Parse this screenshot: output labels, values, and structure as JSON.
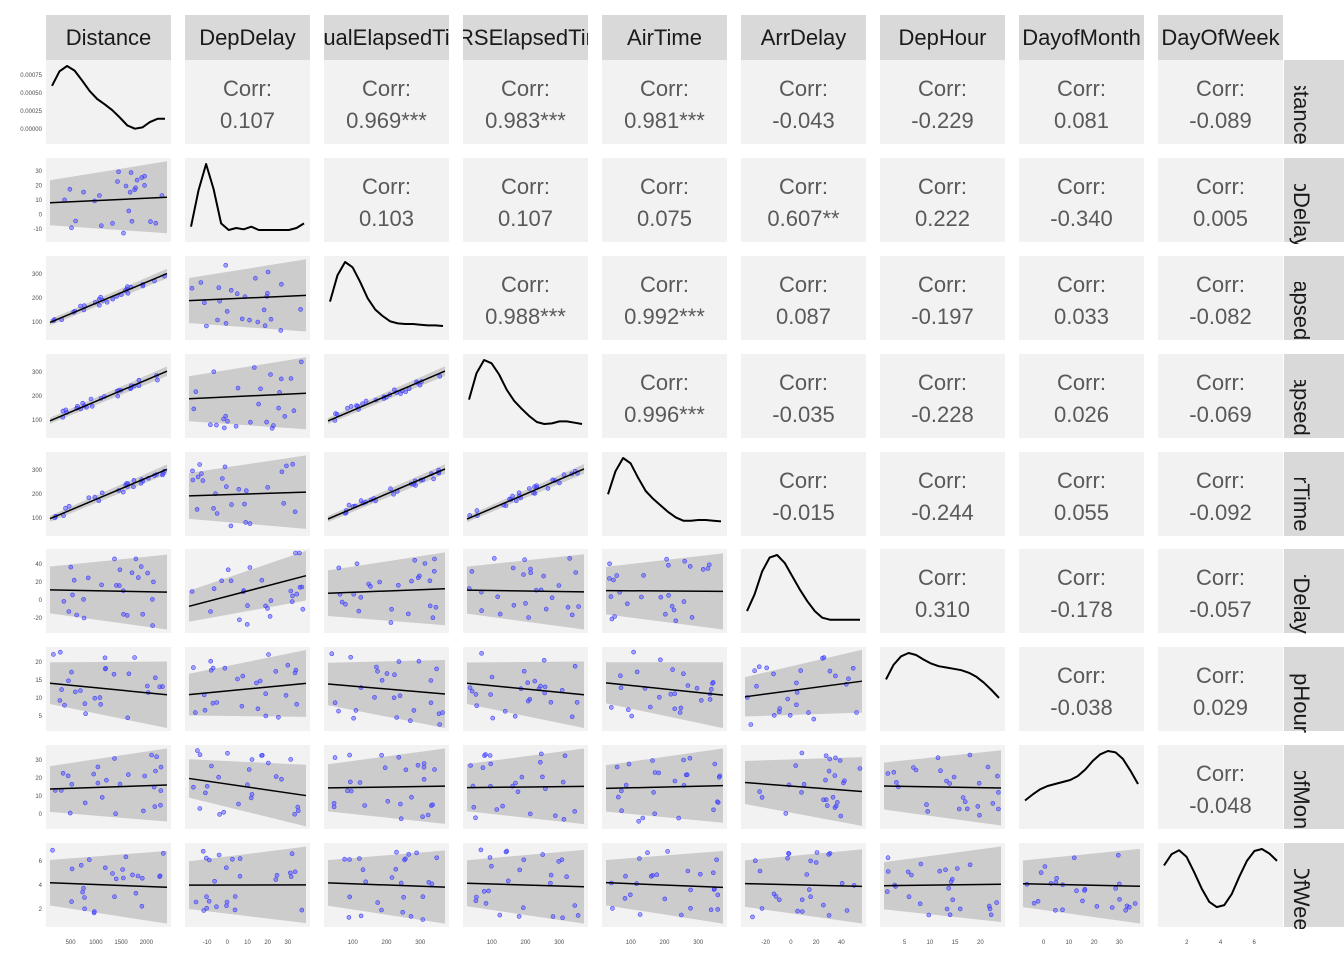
{
  "chart_data": {
    "type": "scatter",
    "variables": [
      "Distance",
      "DepDelay",
      "ActualElapsedTime",
      "CRSElapsedTime",
      "AirTime",
      "ArrDelay",
      "DepHour",
      "DayofMonth",
      "DayOfWeek"
    ],
    "column_labels": [
      "Distance",
      "DepDelay",
      "ualElapsedTi",
      "RSElapsedTir",
      "AirTime",
      "ArrDelay",
      "DepHour",
      "DayofMonth",
      "DayOfWeek"
    ],
    "row_labels": [
      "Distance",
      "DepDelay",
      "lElapsed",
      "Elapsed",
      "AirTime",
      "ArrDelay",
      "DepHour",
      "ayofMon",
      "ayOfWee"
    ],
    "correlations": [
      {
        "row": 0,
        "col": 1,
        "label": "Corr:",
        "value": "0.107"
      },
      {
        "row": 0,
        "col": 2,
        "label": "Corr:",
        "value": "0.969***"
      },
      {
        "row": 0,
        "col": 3,
        "label": "Corr:",
        "value": "0.983***"
      },
      {
        "row": 0,
        "col": 4,
        "label": "Corr:",
        "value": "0.981***"
      },
      {
        "row": 0,
        "col": 5,
        "label": "Corr:",
        "value": "-0.043"
      },
      {
        "row": 0,
        "col": 6,
        "label": "Corr:",
        "value": "-0.229"
      },
      {
        "row": 0,
        "col": 7,
        "label": "Corr:",
        "value": "0.081"
      },
      {
        "row": 0,
        "col": 8,
        "label": "Corr:",
        "value": "-0.089"
      },
      {
        "row": 1,
        "col": 2,
        "label": "Corr:",
        "value": "0.103"
      },
      {
        "row": 1,
        "col": 3,
        "label": "Corr:",
        "value": "0.107"
      },
      {
        "row": 1,
        "col": 4,
        "label": "Corr:",
        "value": "0.075"
      },
      {
        "row": 1,
        "col": 5,
        "label": "Corr:",
        "value": "0.607**"
      },
      {
        "row": 1,
        "col": 6,
        "label": "Corr:",
        "value": "0.222"
      },
      {
        "row": 1,
        "col": 7,
        "label": "Corr:",
        "value": "-0.340"
      },
      {
        "row": 1,
        "col": 8,
        "label": "Corr:",
        "value": "0.005"
      },
      {
        "row": 2,
        "col": 3,
        "label": "Corr:",
        "value": "0.988***"
      },
      {
        "row": 2,
        "col": 4,
        "label": "Corr:",
        "value": "0.992***"
      },
      {
        "row": 2,
        "col": 5,
        "label": "Corr:",
        "value": "0.087"
      },
      {
        "row": 2,
        "col": 6,
        "label": "Corr:",
        "value": "-0.197"
      },
      {
        "row": 2,
        "col": 7,
        "label": "Corr:",
        "value": "0.033"
      },
      {
        "row": 2,
        "col": 8,
        "label": "Corr:",
        "value": "-0.082"
      },
      {
        "row": 3,
        "col": 4,
        "label": "Corr:",
        "value": "0.996***"
      },
      {
        "row": 3,
        "col": 5,
        "label": "Corr:",
        "value": "-0.035"
      },
      {
        "row": 3,
        "col": 6,
        "label": "Corr:",
        "value": "-0.228"
      },
      {
        "row": 3,
        "col": 7,
        "label": "Corr:",
        "value": "0.026"
      },
      {
        "row": 3,
        "col": 8,
        "label": "Corr:",
        "value": "-0.069"
      },
      {
        "row": 4,
        "col": 5,
        "label": "Corr:",
        "value": "-0.015"
      },
      {
        "row": 4,
        "col": 6,
        "label": "Corr:",
        "value": "-0.244"
      },
      {
        "row": 4,
        "col": 7,
        "label": "Corr:",
        "value": "0.055"
      },
      {
        "row": 4,
        "col": 8,
        "label": "Corr:",
        "value": "-0.092"
      },
      {
        "row": 5,
        "col": 6,
        "label": "Corr:",
        "value": "0.310"
      },
      {
        "row": 5,
        "col": 7,
        "label": "Corr:",
        "value": "-0.178"
      },
      {
        "row": 5,
        "col": 8,
        "label": "Corr:",
        "value": "-0.057"
      },
      {
        "row": 6,
        "col": 7,
        "label": "Corr:",
        "value": "-0.038"
      },
      {
        "row": 6,
        "col": 8,
        "label": "Corr:",
        "value": "0.029"
      },
      {
        "row": 7,
        "col": 8,
        "label": "Corr:",
        "value": "-0.048"
      }
    ],
    "x_ticks": [
      {
        "col": 0,
        "labels": [
          "500",
          "1000",
          "1500",
          "2000"
        ]
      },
      {
        "col": 1,
        "labels": [
          "-10",
          "0",
          "10",
          "20",
          "30"
        ]
      },
      {
        "col": 2,
        "labels": [
          "100",
          "200",
          "300"
        ]
      },
      {
        "col": 3,
        "labels": [
          "100",
          "200",
          "300"
        ]
      },
      {
        "col": 4,
        "labels": [
          "100",
          "200",
          "300"
        ]
      },
      {
        "col": 5,
        "labels": [
          "-20",
          "0",
          "20",
          "40"
        ]
      },
      {
        "col": 6,
        "labels": [
          "5",
          "10",
          "15",
          "20"
        ]
      },
      {
        "col": 7,
        "labels": [
          "0",
          "10",
          "20",
          "30"
        ]
      },
      {
        "col": 8,
        "labels": [
          "2",
          "4",
          "6"
        ]
      }
    ],
    "y_ticks": [
      {
        "row": 0,
        "labels": [
          "0.00000",
          "0.00025",
          "0.00050",
          "0.00075"
        ]
      },
      {
        "row": 1,
        "labels": [
          "-10",
          "0",
          "10",
          "20",
          "30"
        ]
      },
      {
        "row": 2,
        "labels": [
          "100",
          "200",
          "300"
        ]
      },
      {
        "row": 3,
        "labels": [
          "100",
          "200",
          "300"
        ]
      },
      {
        "row": 4,
        "labels": [
          "100",
          "200",
          "300"
        ]
      },
      {
        "row": 5,
        "labels": [
          "-20",
          "0",
          "20",
          "40"
        ]
      },
      {
        "row": 6,
        "labels": [
          "5",
          "10",
          "15",
          "20"
        ]
      },
      {
        "row": 7,
        "labels": [
          "0",
          "10",
          "20",
          "30"
        ]
      },
      {
        "row": 8,
        "labels": [
          "2",
          "4",
          "6"
        ]
      }
    ],
    "colors": {
      "points": "#4040ff",
      "panel": "#f2f2f2",
      "strip": "#d9d9d9",
      "band": "#c8c8c8",
      "line": "#000000"
    }
  }
}
